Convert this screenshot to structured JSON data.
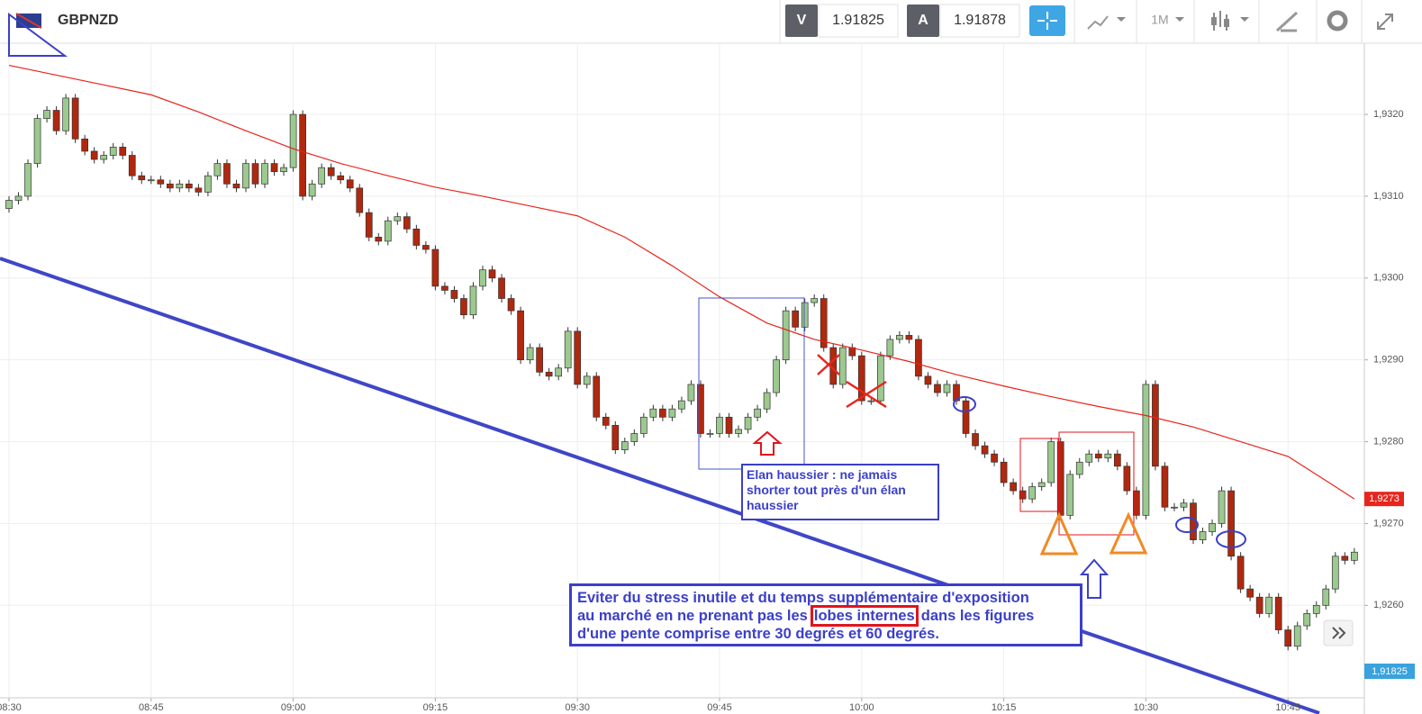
{
  "chart_data": {
    "type": "candlestick",
    "title": "GBPNZD",
    "toolbar": {
      "bid_label": "V",
      "bid": 1.91825,
      "ask_label": "A",
      "ask": 1.91878,
      "interval": "1M"
    },
    "categories": [
      "08:30",
      null,
      null,
      null,
      null,
      null,
      null,
      null,
      null,
      null,
      null,
      null,
      null,
      null,
      null,
      "08:45",
      null,
      null,
      null,
      null,
      null,
      null,
      null,
      null,
      null,
      null,
      null,
      null,
      null,
      null,
      "09:00",
      null,
      null,
      null,
      null,
      null,
      null,
      null,
      null,
      null,
      null,
      null,
      null,
      null,
      null,
      "09:15",
      null,
      null,
      null,
      null,
      null,
      null,
      null,
      null,
      null,
      null,
      null,
      null,
      null,
      null,
      "09:30",
      null,
      null,
      null,
      null,
      null,
      null,
      null,
      null,
      null,
      null,
      null,
      null,
      null,
      null,
      "09:45",
      null,
      null,
      null,
      null,
      null,
      null,
      null,
      null,
      null,
      null,
      null,
      null,
      null,
      null,
      "10:00",
      null,
      null,
      null,
      null,
      null,
      null,
      null,
      null,
      null,
      null,
      null,
      null,
      null,
      null,
      "10:15",
      null,
      null,
      null,
      null,
      null,
      null,
      null,
      null,
      null,
      null,
      null,
      null,
      null,
      null,
      "10:30",
      null,
      null,
      null,
      null,
      null,
      null,
      null,
      null,
      null,
      null,
      null,
      null,
      null,
      null,
      "10:45",
      null,
      null,
      null,
      null,
      null,
      null,
      null
    ],
    "candles": [
      [
        1.93085,
        1.931,
        1.9308,
        1.93095
      ],
      [
        1.93095,
        1.93105,
        1.9309,
        1.931
      ],
      [
        1.931,
        1.93145,
        1.93095,
        1.9314
      ],
      [
        1.9314,
        1.932,
        1.93135,
        1.93195
      ],
      [
        1.93195,
        1.9321,
        1.9319,
        1.93205
      ],
      [
        1.93205,
        1.9321,
        1.93175,
        1.9318
      ],
      [
        1.9318,
        1.93225,
        1.93175,
        1.9322
      ],
      [
        1.9322,
        1.93225,
        1.93165,
        1.9317
      ],
      [
        1.9317,
        1.93175,
        1.9315,
        1.93155
      ],
      [
        1.93155,
        1.9316,
        1.9314,
        1.93145
      ],
      [
        1.93145,
        1.93155,
        1.9314,
        1.9315
      ],
      [
        1.9315,
        1.93165,
        1.93145,
        1.9316
      ],
      [
        1.9316,
        1.93165,
        1.93145,
        1.9315
      ],
      [
        1.9315,
        1.93155,
        1.9312,
        1.93125
      ],
      [
        1.93125,
        1.9313,
        1.93115,
        1.9312
      ],
      [
        1.9312,
        1.93125,
        1.93115,
        1.9312
      ],
      [
        1.9312,
        1.93125,
        1.9311,
        1.93115
      ],
      [
        1.93115,
        1.9312,
        1.93105,
        1.9311
      ],
      [
        1.9311,
        1.9312,
        1.93105,
        1.93115
      ],
      [
        1.93115,
        1.9312,
        1.93105,
        1.9311
      ],
      [
        1.9311,
        1.93115,
        1.931,
        1.93105
      ],
      [
        1.93105,
        1.9313,
        1.931,
        1.93125
      ],
      [
        1.93125,
        1.93145,
        1.9312,
        1.9314
      ],
      [
        1.9314,
        1.93145,
        1.9311,
        1.93115
      ],
      [
        1.93115,
        1.9312,
        1.93105,
        1.9311
      ],
      [
        1.9311,
        1.93145,
        1.93105,
        1.9314
      ],
      [
        1.9314,
        1.93145,
        1.9311,
        1.93115
      ],
      [
        1.93115,
        1.93145,
        1.9311,
        1.9314
      ],
      [
        1.9314,
        1.93145,
        1.93125,
        1.9313
      ],
      [
        1.9313,
        1.9314,
        1.93125,
        1.93135
      ],
      [
        1.93135,
        1.93205,
        1.9313,
        1.932
      ],
      [
        1.932,
        1.93205,
        1.93095,
        1.931
      ],
      [
        1.931,
        1.9312,
        1.93095,
        1.93115
      ],
      [
        1.93115,
        1.9314,
        1.9311,
        1.93135
      ],
      [
        1.93135,
        1.9314,
        1.9312,
        1.93125
      ],
      [
        1.93125,
        1.9313,
        1.93115,
        1.9312
      ],
      [
        1.9312,
        1.93125,
        1.93105,
        1.9311
      ],
      [
        1.9311,
        1.93115,
        1.93075,
        1.9308
      ],
      [
        1.9308,
        1.93085,
        1.93045,
        1.9305
      ],
      [
        1.9305,
        1.93055,
        1.9304,
        1.93045
      ],
      [
        1.93045,
        1.93075,
        1.9304,
        1.9307
      ],
      [
        1.9307,
        1.9308,
        1.93065,
        1.93075
      ],
      [
        1.93075,
        1.9308,
        1.93055,
        1.9306
      ],
      [
        1.9306,
        1.93065,
        1.93035,
        1.9304
      ],
      [
        1.9304,
        1.93045,
        1.9303,
        1.93035
      ],
      [
        1.93035,
        1.9304,
        1.92985,
        1.9299
      ],
      [
        1.9299,
        1.92995,
        1.9298,
        1.92985
      ],
      [
        1.92985,
        1.9299,
        1.9297,
        1.92975
      ],
      [
        1.92975,
        1.9298,
        1.9295,
        1.92955
      ],
      [
        1.92955,
        1.92995,
        1.9295,
        1.9299
      ],
      [
        1.9299,
        1.93015,
        1.92985,
        1.9301
      ],
      [
        1.9301,
        1.93015,
        1.92995,
        1.93
      ],
      [
        1.93,
        1.93005,
        1.9297,
        1.92975
      ],
      [
        1.92975,
        1.9298,
        1.92955,
        1.9296
      ],
      [
        1.9296,
        1.92965,
        1.92895,
        1.929
      ],
      [
        1.929,
        1.9292,
        1.92895,
        1.92915
      ],
      [
        1.92915,
        1.9292,
        1.9288,
        1.92885
      ],
      [
        1.92885,
        1.9289,
        1.92875,
        1.9288
      ],
      [
        1.9288,
        1.92895,
        1.92875,
        1.9289
      ],
      [
        1.9289,
        1.9294,
        1.92885,
        1.92935
      ],
      [
        1.92935,
        1.9294,
        1.92865,
        1.9287
      ],
      [
        1.9287,
        1.92885,
        1.92865,
        1.9288
      ],
      [
        1.9288,
        1.92885,
        1.92825,
        1.9283
      ],
      [
        1.9283,
        1.92835,
        1.92815,
        1.9282
      ],
      [
        1.9282,
        1.92825,
        1.92785,
        1.9279
      ],
      [
        1.9279,
        1.92805,
        1.92785,
        1.928
      ],
      [
        1.928,
        1.92815,
        1.92795,
        1.9281
      ],
      [
        1.9281,
        1.92835,
        1.92805,
        1.9283
      ],
      [
        1.9283,
        1.92845,
        1.92825,
        1.9284
      ],
      [
        1.9284,
        1.92845,
        1.92825,
        1.9283
      ],
      [
        1.9283,
        1.92845,
        1.92825,
        1.9284
      ],
      [
        1.9284,
        1.92855,
        1.92835,
        1.9285
      ],
      [
        1.9285,
        1.92875,
        1.92845,
        1.9287
      ],
      [
        1.9287,
        1.92875,
        1.92805,
        1.9281
      ],
      [
        1.9281,
        1.92815,
        1.92805,
        1.9281
      ],
      [
        1.9281,
        1.92835,
        1.92805,
        1.9283
      ],
      [
        1.9283,
        1.92835,
        1.92805,
        1.9281
      ],
      [
        1.9281,
        1.9282,
        1.92805,
        1.92815
      ],
      [
        1.92815,
        1.92835,
        1.9281,
        1.9283
      ],
      [
        1.9283,
        1.92845,
        1.92825,
        1.9284
      ],
      [
        1.9284,
        1.92865,
        1.92835,
        1.9286
      ],
      [
        1.9286,
        1.92905,
        1.92855,
        1.929
      ],
      [
        1.929,
        1.92965,
        1.92895,
        1.9296
      ],
      [
        1.9296,
        1.92965,
        1.92935,
        1.9294
      ],
      [
        1.9294,
        1.92975,
        1.92935,
        1.9297
      ],
      [
        1.9297,
        1.9298,
        1.92965,
        1.92975
      ],
      [
        1.92975,
        1.9298,
        1.9291,
        1.92915
      ],
      [
        1.92915,
        1.9292,
        1.92865,
        1.9287
      ],
      [
        1.9287,
        1.9292,
        1.92865,
        1.92915
      ],
      [
        1.92915,
        1.9292,
        1.929,
        1.92905
      ],
      [
        1.92905,
        1.9291,
        1.92845,
        1.9285
      ],
      [
        1.9285,
        1.92855,
        1.92845,
        1.9285
      ],
      [
        1.9285,
        1.9291,
        1.92845,
        1.92905
      ],
      [
        1.92905,
        1.9293,
        1.929,
        1.92925
      ],
      [
        1.92925,
        1.92935,
        1.9292,
        1.9293
      ],
      [
        1.9293,
        1.92935,
        1.9292,
        1.92925
      ],
      [
        1.92925,
        1.9293,
        1.92875,
        1.9288
      ],
      [
        1.9288,
        1.92885,
        1.92865,
        1.9287
      ],
      [
        1.9287,
        1.92875,
        1.92855,
        1.9286
      ],
      [
        1.9286,
        1.92875,
        1.92855,
        1.9287
      ],
      [
        1.9287,
        1.92875,
        1.92845,
        1.9285
      ],
      [
        1.9285,
        1.92855,
        1.92805,
        1.9281
      ],
      [
        1.9281,
        1.92815,
        1.9279,
        1.92795
      ],
      [
        1.92795,
        1.928,
        1.9278,
        1.92785
      ],
      [
        1.92785,
        1.9279,
        1.9277,
        1.92775
      ],
      [
        1.92775,
        1.9278,
        1.92745,
        1.9275
      ],
      [
        1.9275,
        1.92755,
        1.92735,
        1.9274
      ],
      [
        1.9274,
        1.92745,
        1.92725,
        1.9273
      ],
      [
        1.9273,
        1.9275,
        1.92725,
        1.92745
      ],
      [
        1.92745,
        1.92755,
        1.9274,
        1.9275
      ],
      [
        1.9275,
        1.92805,
        1.92745,
        1.928
      ],
      [
        1.928,
        1.92805,
        1.92705,
        1.9271
      ],
      [
        1.9271,
        1.92765,
        1.92705,
        1.9276
      ],
      [
        1.9276,
        1.9278,
        1.92755,
        1.92775
      ],
      [
        1.92775,
        1.9279,
        1.9277,
        1.92785
      ],
      [
        1.92785,
        1.9279,
        1.92775,
        1.9278
      ],
      [
        1.9278,
        1.9279,
        1.92775,
        1.92785
      ],
      [
        1.92785,
        1.9279,
        1.92765,
        1.9277
      ],
      [
        1.9277,
        1.92775,
        1.92735,
        1.9274
      ],
      [
        1.9274,
        1.92745,
        1.92705,
        1.9271
      ],
      [
        1.9271,
        1.92875,
        1.92705,
        1.9287
      ],
      [
        1.9287,
        1.92875,
        1.92765,
        1.9277
      ],
      [
        1.9277,
        1.92775,
        1.92715,
        1.9272
      ],
      [
        1.9272,
        1.92725,
        1.92715,
        1.9272
      ],
      [
        1.9272,
        1.9273,
        1.92715,
        1.92725
      ],
      [
        1.92725,
        1.9273,
        1.92675,
        1.9268
      ],
      [
        1.9268,
        1.92695,
        1.92675,
        1.9269
      ],
      [
        1.9269,
        1.92705,
        1.92685,
        1.927
      ],
      [
        1.927,
        1.92745,
        1.92695,
        1.9274
      ],
      [
        1.9274,
        1.92745,
        1.92655,
        1.9266
      ],
      [
        1.9266,
        1.92665,
        1.92615,
        1.9262
      ],
      [
        1.9262,
        1.92625,
        1.92605,
        1.9261
      ],
      [
        1.9261,
        1.92615,
        1.92585,
        1.9259
      ],
      [
        1.9259,
        1.92615,
        1.92585,
        1.9261
      ],
      [
        1.9261,
        1.92615,
        1.92565,
        1.9257
      ],
      [
        1.9257,
        1.92575,
        1.92545,
        1.9255
      ],
      [
        1.9255,
        1.9258,
        1.92545,
        1.92575
      ],
      [
        1.92575,
        1.92595,
        1.9257,
        1.9259
      ],
      [
        1.9259,
        1.92605,
        1.92585,
        1.926
      ],
      [
        1.926,
        1.92625,
        1.92595,
        1.9262
      ],
      [
        1.9262,
        1.92665,
        1.92615,
        1.9266
      ],
      [
        1.9266,
        1.92665,
        1.9265,
        1.92655
      ],
      [
        1.92655,
        1.9267,
        1.9265,
        1.92665
      ]
    ],
    "up_color": "#9cc98f",
    "down_color": "#b0280e",
    "ma": {
      "color": "#e8251c",
      "x": [
        "08:30",
        "08:35",
        "08:40",
        "08:45",
        "08:50",
        "08:55",
        "09:00",
        "09:05",
        "09:10",
        "09:15",
        "09:20",
        "09:25",
        "09:30",
        "09:35",
        "09:40",
        "09:45",
        "09:50",
        "09:55",
        "10:00",
        "10:05",
        "10:10",
        "10:15",
        "10:20",
        "10:25",
        "10:30",
        "10:35",
        "10:40",
        "10:45",
        "10:50",
        "10:52"
      ],
      "values": [
        1.9326,
        1.93248,
        1.93236,
        1.93224,
        1.93203,
        1.9318,
        1.93158,
        1.9314,
        1.93125,
        1.93111,
        1.931,
        1.93088,
        1.93076,
        1.9305,
        1.93015,
        1.92977,
        1.92945,
        1.92925,
        1.92912,
        1.92898,
        1.92882,
        1.92868,
        1.92855,
        1.92843,
        1.92832,
        1.92818,
        1.928,
        1.92782,
        1.92745,
        1.9273
      ]
    },
    "ma_tag": {
      "value": 1.9273,
      "label": "1,9273"
    },
    "bid_tag": "1,91825",
    "ylim": [
      1.92487,
      1.93287
    ],
    "yticks": [
      {
        "value": 1.926,
        "label": "1,9260"
      },
      {
        "value": 1.927,
        "label": "1,9270"
      },
      {
        "value": 1.928,
        "label": "1,9280"
      },
      {
        "value": 1.929,
        "label": "1,9290"
      },
      {
        "value": 1.93,
        "label": "1,9300"
      },
      {
        "value": 1.931,
        "label": "1,9310"
      },
      {
        "value": 1.932,
        "label": "1,9320"
      }
    ],
    "grid": true,
    "annotations": {
      "note1": "Elan haussier : ne jamais shorter tout près d'un élan haussier",
      "note2": {
        "line1": "Eviter du stress inutile et du temps supplémentaire d'exposition",
        "line2_before": "au marché en ne prenant pas les",
        "highlight": "lobes internes",
        "line2_after": "dans les figures",
        "line3": "d'une pente comprise entre 30 degrés et 60 degrés."
      }
    }
  }
}
